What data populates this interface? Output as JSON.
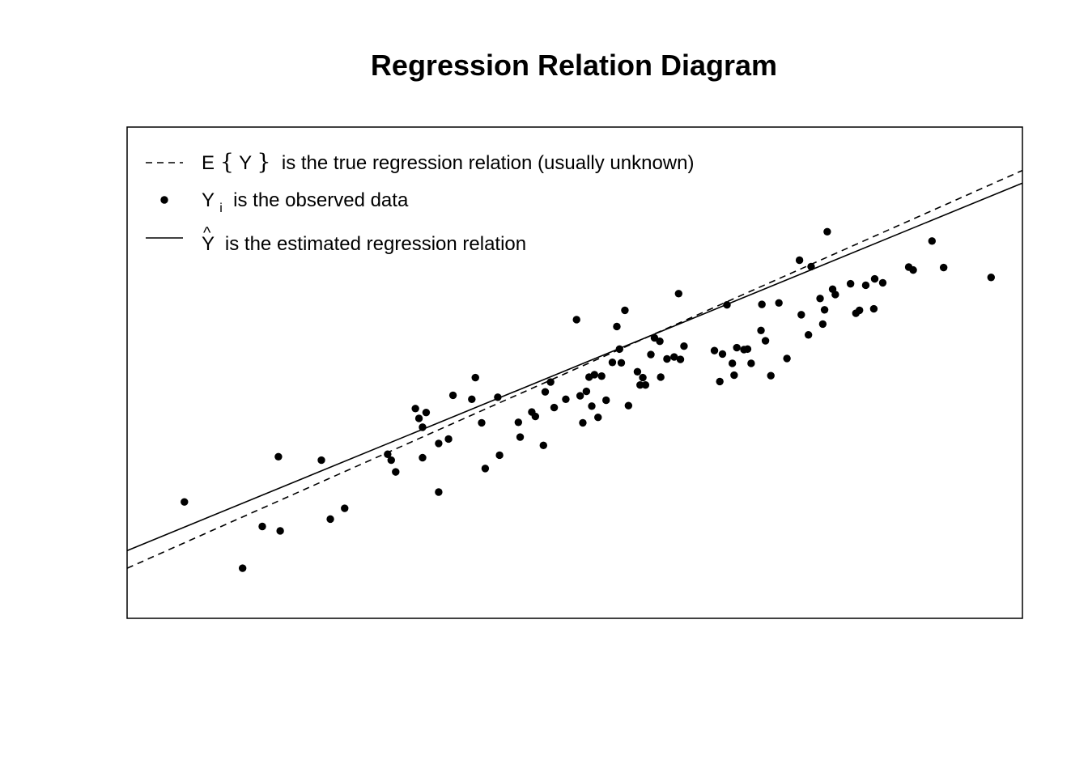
{
  "chart_data": {
    "type": "scatter",
    "title": "Regression Relation Diagram",
    "xlabel": "",
    "ylabel": "",
    "xlim": [
      0,
      100
    ],
    "ylim": [
      0,
      100
    ],
    "axes_visible": false,
    "grid": false,
    "box": true,
    "legend_position": "top-left",
    "legend": [
      {
        "name": "true-line",
        "line_style": "dashed",
        "prefix": "E",
        "open_brace": "{",
        "symbol": "Y",
        "close_brace": "}",
        "text": " is the true regression relation (usually unknown)"
      },
      {
        "name": "observed-data",
        "marker": "filled-circle",
        "symbol": "Y",
        "subscript": "i",
        "text": " is the observed data"
      },
      {
        "name": "fitted-line",
        "line_style": "solid",
        "hat": "^",
        "symbol": "Y",
        "text": " is the estimated regression relation"
      }
    ],
    "lines": {
      "true": {
        "name": "E{Y}",
        "style": "dashed",
        "intercept": 10.19,
        "slope": 0.8098
      },
      "fitted": {
        "name": "Ŷ",
        "style": "solid",
        "intercept": 13.78,
        "slope": 0.7482
      }
    },
    "points": [
      {
        "x": 6.4,
        "y": 23.7
      },
      {
        "x": 12.9,
        "y": 10.2
      },
      {
        "x": 15.1,
        "y": 18.7
      },
      {
        "x": 16.9,
        "y": 32.9
      },
      {
        "x": 17.1,
        "y": 17.8
      },
      {
        "x": 21.7,
        "y": 32.2
      },
      {
        "x": 22.7,
        "y": 20.2
      },
      {
        "x": 24.3,
        "y": 22.4
      },
      {
        "x": 29.1,
        "y": 33.4
      },
      {
        "x": 29.5,
        "y": 32.2
      },
      {
        "x": 30.0,
        "y": 29.8
      },
      {
        "x": 32.2,
        "y": 42.7
      },
      {
        "x": 32.6,
        "y": 40.7
      },
      {
        "x": 33.0,
        "y": 38.9
      },
      {
        "x": 33.4,
        "y": 41.9
      },
      {
        "x": 33.0,
        "y": 32.7
      },
      {
        "x": 34.8,
        "y": 25.7
      },
      {
        "x": 34.8,
        "y": 35.6
      },
      {
        "x": 35.9,
        "y": 36.5
      },
      {
        "x": 36.4,
        "y": 45.4
      },
      {
        "x": 38.5,
        "y": 44.6
      },
      {
        "x": 38.9,
        "y": 49.0
      },
      {
        "x": 39.6,
        "y": 39.8
      },
      {
        "x": 40.0,
        "y": 30.5
      },
      {
        "x": 41.4,
        "y": 45.0
      },
      {
        "x": 41.6,
        "y": 33.2
      },
      {
        "x": 43.9,
        "y": 36.9
      },
      {
        "x": 43.7,
        "y": 39.9
      },
      {
        "x": 45.2,
        "y": 42.0
      },
      {
        "x": 45.6,
        "y": 41.1
      },
      {
        "x": 46.5,
        "y": 35.2
      },
      {
        "x": 46.7,
        "y": 46.1
      },
      {
        "x": 47.3,
        "y": 48.1
      },
      {
        "x": 47.7,
        "y": 42.9
      },
      {
        "x": 49.0,
        "y": 44.6
      },
      {
        "x": 50.2,
        "y": 60.8
      },
      {
        "x": 50.6,
        "y": 45.3
      },
      {
        "x": 50.9,
        "y": 39.8
      },
      {
        "x": 51.3,
        "y": 46.2
      },
      {
        "x": 51.6,
        "y": 49.1
      },
      {
        "x": 51.9,
        "y": 43.2
      },
      {
        "x": 52.2,
        "y": 49.6
      },
      {
        "x": 52.6,
        "y": 40.9
      },
      {
        "x": 53.0,
        "y": 49.3
      },
      {
        "x": 53.5,
        "y": 44.4
      },
      {
        "x": 54.2,
        "y": 52.1
      },
      {
        "x": 54.7,
        "y": 59.4
      },
      {
        "x": 55.0,
        "y": 54.8
      },
      {
        "x": 55.2,
        "y": 52.0
      },
      {
        "x": 55.6,
        "y": 62.7
      },
      {
        "x": 56.0,
        "y": 43.3
      },
      {
        "x": 57.0,
        "y": 50.2
      },
      {
        "x": 57.3,
        "y": 47.5
      },
      {
        "x": 57.6,
        "y": 49.0
      },
      {
        "x": 57.9,
        "y": 47.5
      },
      {
        "x": 58.5,
        "y": 53.7
      },
      {
        "x": 58.9,
        "y": 57.1
      },
      {
        "x": 59.5,
        "y": 56.4
      },
      {
        "x": 59.6,
        "y": 49.1
      },
      {
        "x": 60.3,
        "y": 52.8
      },
      {
        "x": 61.1,
        "y": 53.2
      },
      {
        "x": 61.6,
        "y": 66.1
      },
      {
        "x": 61.8,
        "y": 52.7
      },
      {
        "x": 62.2,
        "y": 55.4
      },
      {
        "x": 65.6,
        "y": 54.5
      },
      {
        "x": 66.2,
        "y": 48.2
      },
      {
        "x": 66.5,
        "y": 53.8
      },
      {
        "x": 67.0,
        "y": 63.8
      },
      {
        "x": 67.6,
        "y": 51.9
      },
      {
        "x": 67.8,
        "y": 49.5
      },
      {
        "x": 68.1,
        "y": 55.1
      },
      {
        "x": 68.9,
        "y": 54.7
      },
      {
        "x": 69.3,
        "y": 54.8
      },
      {
        "x": 69.7,
        "y": 51.9
      },
      {
        "x": 70.8,
        "y": 58.6
      },
      {
        "x": 70.9,
        "y": 63.9
      },
      {
        "x": 71.3,
        "y": 56.5
      },
      {
        "x": 71.9,
        "y": 49.4
      },
      {
        "x": 72.8,
        "y": 64.2
      },
      {
        "x": 73.7,
        "y": 52.9
      },
      {
        "x": 75.3,
        "y": 61.8
      },
      {
        "x": 75.1,
        "y": 72.9
      },
      {
        "x": 76.1,
        "y": 57.7
      },
      {
        "x": 76.4,
        "y": 71.6
      },
      {
        "x": 77.7,
        "y": 59.9
      },
      {
        "x": 78.2,
        "y": 78.7
      },
      {
        "x": 77.4,
        "y": 65.1
      },
      {
        "x": 77.9,
        "y": 62.8
      },
      {
        "x": 78.8,
        "y": 67.0
      },
      {
        "x": 79.1,
        "y": 65.9
      },
      {
        "x": 80.8,
        "y": 68.1
      },
      {
        "x": 81.4,
        "y": 62.1
      },
      {
        "x": 81.8,
        "y": 62.7
      },
      {
        "x": 82.5,
        "y": 67.8
      },
      {
        "x": 83.4,
        "y": 63.0
      },
      {
        "x": 83.5,
        "y": 69.1
      },
      {
        "x": 84.4,
        "y": 68.3
      },
      {
        "x": 87.3,
        "y": 71.5
      },
      {
        "x": 87.8,
        "y": 70.9
      },
      {
        "x": 89.9,
        "y": 76.8
      },
      {
        "x": 91.2,
        "y": 71.4
      },
      {
        "x": 96.5,
        "y": 69.4
      }
    ]
  }
}
